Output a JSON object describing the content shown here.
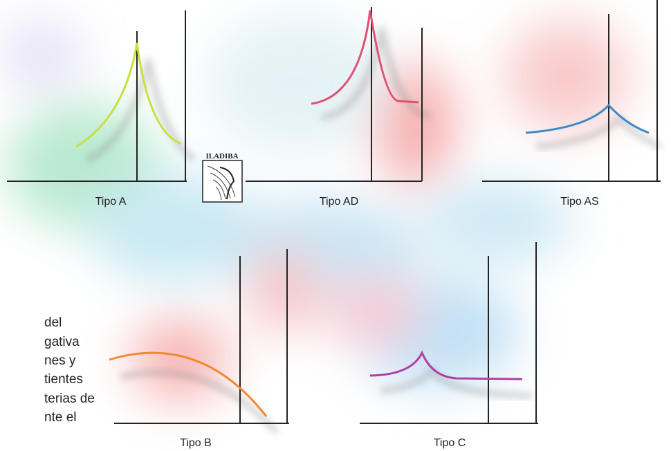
{
  "logo": "ILADIBA",
  "panels": [
    {
      "label": "Tipo A"
    },
    {
      "label": "Tipo AD"
    },
    {
      "label": "Tipo AS"
    },
    {
      "label": "Tipo B"
    },
    {
      "label": "Tipo C"
    }
  ],
  "side_text": [
    "del",
    "gativa",
    "nes y",
    "tientes",
    "terias de",
    "nte el"
  ]
}
